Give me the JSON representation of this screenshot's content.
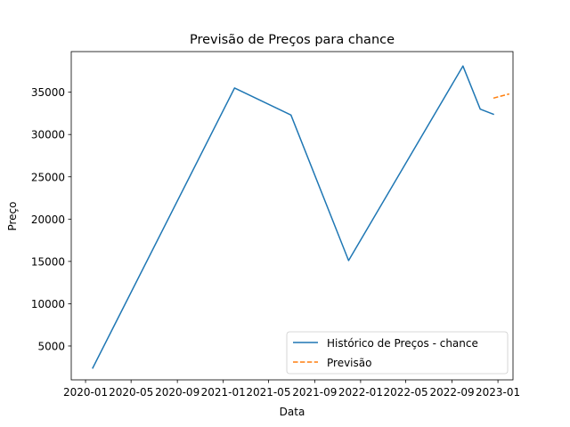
{
  "chart_data": {
    "type": "line",
    "title": "Previsão de Preços para chance",
    "xlabel": "Data",
    "ylabel": "Preço",
    "x_tick_labels": [
      "2020-01",
      "2020-05",
      "2020-09",
      "2021-01",
      "2021-05",
      "2021-09",
      "2022-01",
      "2022-05",
      "2022-09",
      "2023-01"
    ],
    "x_ticks": [
      "2020-01-01",
      "2020-05-01",
      "2020-09-01",
      "2021-01-01",
      "2021-05-01",
      "2021-09-01",
      "2022-01-01",
      "2022-05-01",
      "2022-09-01",
      "2023-01-01"
    ],
    "y_ticks": [
      5000,
      10000,
      15000,
      20000,
      25000,
      30000,
      35000
    ],
    "xlim": [
      "2019-11-24",
      "2023-02-10"
    ],
    "ylim": [
      1000,
      39800
    ],
    "grid": false,
    "legend_position": "lower right",
    "series": [
      {
        "name": "Histórico de Preços - chance",
        "color": "#1f77b4",
        "style": "solid",
        "points": [
          {
            "x": "2020-01-20",
            "y": 2400
          },
          {
            "x": "2021-01-31",
            "y": 35500
          },
          {
            "x": "2021-06-30",
            "y": 32300
          },
          {
            "x": "2021-11-30",
            "y": 15100
          },
          {
            "x": "2022-09-30",
            "y": 38100
          },
          {
            "x": "2022-11-15",
            "y": 33000
          },
          {
            "x": "2022-12-20",
            "y": 32400
          }
        ]
      },
      {
        "name": "Previsão",
        "color": "#ff7f0e",
        "style": "dashed",
        "points": [
          {
            "x": "2022-12-20",
            "y": 34300
          },
          {
            "x": "2023-01-31",
            "y": 34800
          }
        ]
      }
    ]
  }
}
